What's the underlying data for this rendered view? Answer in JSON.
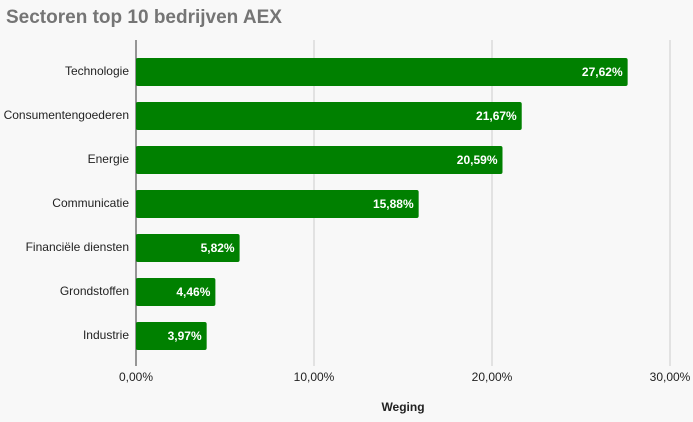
{
  "chart_data": {
    "type": "bar",
    "orientation": "horizontal",
    "title": "Sectoren top 10 bedrijven AEX",
    "categories": [
      "Technologie",
      "Consumentengoederen",
      "Energie",
      "Communicatie",
      "Financiële diensten",
      "Grondstoffen",
      "Industrie"
    ],
    "values": [
      27.62,
      21.67,
      20.59,
      15.88,
      5.82,
      4.46,
      3.97
    ],
    "value_labels": [
      "27,62%",
      "21,67%",
      "20,59%",
      "15,88%",
      "5,82%",
      "4,46%",
      "3,97%"
    ],
    "color": "#008000",
    "xlabel": "Weging",
    "xlim": [
      0,
      30
    ],
    "xticks": [
      {
        "value": 0,
        "label": "0,00%"
      },
      {
        "value": 10,
        "label": "10,00%"
      },
      {
        "value": 20,
        "label": "20,00%"
      },
      {
        "value": 30,
        "label": "30,00%"
      }
    ],
    "grid": true
  }
}
